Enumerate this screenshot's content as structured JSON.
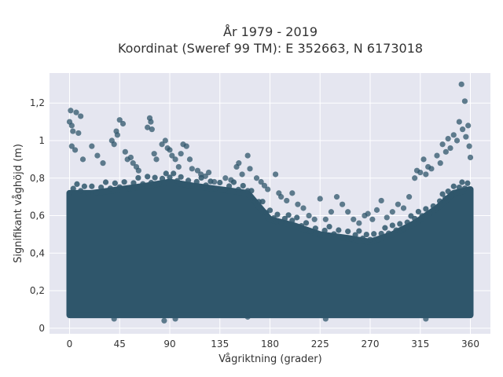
{
  "chart_data": {
    "type": "scatter",
    "title_lines": [
      "År 1979 - 2019",
      "Koordinat (Sweref 99 TM): E 352663, N 6173018"
    ],
    "xlabel": "Vågriktning (grader)",
    "ylabel": "Signifikant våghöjd (m)",
    "xlim": [
      -18,
      378
    ],
    "ylim": [
      -0.03,
      1.36
    ],
    "xticks": [
      0,
      45,
      90,
      135,
      180,
      225,
      270,
      315,
      360
    ],
    "xtick_labels": [
      "0",
      "45",
      "90",
      "135",
      "180",
      "225",
      "270",
      "315",
      "360"
    ],
    "yticks": [
      0,
      0.2,
      0.4,
      0.6,
      0.8,
      1.0,
      1.2
    ],
    "ytick_labels": [
      "0",
      "0,2",
      "0,4",
      "0,6",
      "0,8",
      "1",
      "1,2"
    ],
    "grid": true,
    "marker_color": "#2f566b",
    "background_color": "#e5e6f0",
    "dense_band": {
      "x_range": [
        0,
        360
      ],
      "y_min": 0.07,
      "upper_envelope": [
        [
          0,
          0.72
        ],
        [
          20,
          0.72
        ],
        [
          45,
          0.74
        ],
        [
          70,
          0.76
        ],
        [
          90,
          0.78
        ],
        [
          110,
          0.76
        ],
        [
          135,
          0.74
        ],
        [
          160,
          0.72
        ],
        [
          180,
          0.58
        ],
        [
          200,
          0.55
        ],
        [
          225,
          0.5
        ],
        [
          250,
          0.48
        ],
        [
          270,
          0.46
        ],
        [
          290,
          0.5
        ],
        [
          310,
          0.56
        ],
        [
          330,
          0.64
        ],
        [
          345,
          0.72
        ],
        [
          360,
          0.74
        ]
      ]
    },
    "points": [
      [
        1,
        1.16
      ],
      [
        2,
        1.08
      ],
      [
        3,
        1.05
      ],
      [
        0,
        1.1
      ],
      [
        6,
        1.15
      ],
      [
        8,
        1.04
      ],
      [
        10,
        1.13
      ],
      [
        2,
        0.97
      ],
      [
        5,
        0.95
      ],
      [
        12,
        0.9
      ],
      [
        20,
        0.97
      ],
      [
        25,
        0.92
      ],
      [
        30,
        0.88
      ],
      [
        38,
        1.0
      ],
      [
        40,
        0.98
      ],
      [
        42,
        1.05
      ],
      [
        43,
        1.03
      ],
      [
        45,
        1.11
      ],
      [
        48,
        1.09
      ],
      [
        50,
        0.94
      ],
      [
        52,
        0.9
      ],
      [
        55,
        0.91
      ],
      [
        57,
        0.88
      ],
      [
        60,
        0.86
      ],
      [
        62,
        0.84
      ],
      [
        70,
        1.07
      ],
      [
        72,
        1.12
      ],
      [
        73,
        1.1
      ],
      [
        74,
        1.06
      ],
      [
        76,
        0.93
      ],
      [
        78,
        0.9
      ],
      [
        83,
        0.98
      ],
      [
        86,
        1.0
      ],
      [
        88,
        0.96
      ],
      [
        90,
        0.95
      ],
      [
        92,
        0.92
      ],
      [
        95,
        0.9
      ],
      [
        98,
        0.86
      ],
      [
        100,
        0.93
      ],
      [
        102,
        0.98
      ],
      [
        105,
        0.97
      ],
      [
        108,
        0.9
      ],
      [
        110,
        0.85
      ],
      [
        115,
        0.84
      ],
      [
        118,
        0.82
      ],
      [
        122,
        0.81
      ],
      [
        125,
        0.83
      ],
      [
        130,
        0.78
      ],
      [
        140,
        0.8
      ],
      [
        145,
        0.79
      ],
      [
        150,
        0.86
      ],
      [
        152,
        0.88
      ],
      [
        155,
        0.82
      ],
      [
        160,
        0.92
      ],
      [
        162,
        0.85
      ],
      [
        168,
        0.8
      ],
      [
        172,
        0.78
      ],
      [
        175,
        0.76
      ],
      [
        178,
        0.74
      ],
      [
        185,
        0.82
      ],
      [
        188,
        0.72
      ],
      [
        190,
        0.7
      ],
      [
        195,
        0.68
      ],
      [
        200,
        0.72
      ],
      [
        205,
        0.66
      ],
      [
        210,
        0.64
      ],
      [
        215,
        0.6
      ],
      [
        220,
        0.58
      ],
      [
        225,
        0.69
      ],
      [
        230,
        0.58
      ],
      [
        235,
        0.62
      ],
      [
        240,
        0.7
      ],
      [
        245,
        0.66
      ],
      [
        250,
        0.62
      ],
      [
        255,
        0.58
      ],
      [
        260,
        0.56
      ],
      [
        265,
        0.6
      ],
      [
        268,
        0.61
      ],
      [
        272,
        0.58
      ],
      [
        276,
        0.63
      ],
      [
        280,
        0.68
      ],
      [
        285,
        0.59
      ],
      [
        290,
        0.62
      ],
      [
        295,
        0.66
      ],
      [
        300,
        0.64
      ],
      [
        305,
        0.7
      ],
      [
        310,
        0.8
      ],
      [
        312,
        0.84
      ],
      [
        315,
        0.83
      ],
      [
        318,
        0.9
      ],
      [
        320,
        0.82
      ],
      [
        322,
        0.86
      ],
      [
        325,
        0.85
      ],
      [
        330,
        0.92
      ],
      [
        333,
        0.88
      ],
      [
        335,
        0.98
      ],
      [
        338,
        0.94
      ],
      [
        340,
        1.01
      ],
      [
        342,
        0.96
      ],
      [
        345,
        1.03
      ],
      [
        348,
        1.0
      ],
      [
        350,
        1.1
      ],
      [
        352,
        1.3
      ],
      [
        353,
        1.06
      ],
      [
        355,
        1.21
      ],
      [
        356,
        1.02
      ],
      [
        358,
        1.08
      ],
      [
        359,
        0.97
      ],
      [
        360,
        0.91
      ],
      [
        40,
        0.05
      ],
      [
        85,
        0.04
      ],
      [
        95,
        0.05
      ],
      [
        160,
        0.06
      ],
      [
        230,
        0.05
      ],
      [
        320,
        0.05
      ]
    ]
  }
}
